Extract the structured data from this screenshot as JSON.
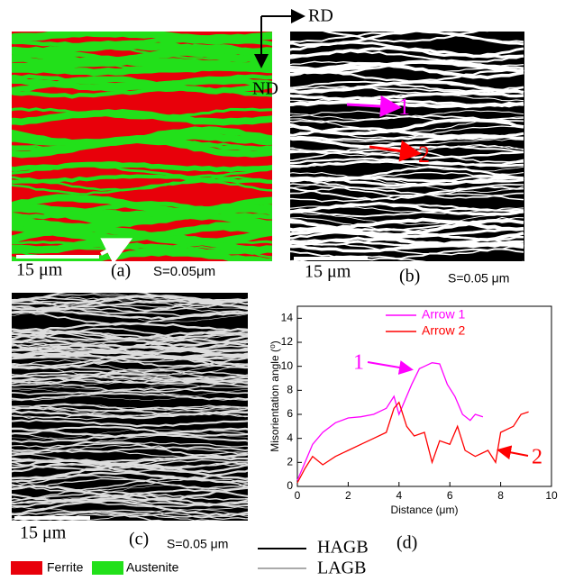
{
  "chart_data": {
    "type": "line",
    "x_label": "Distance (μm)",
    "y_label": "Misorientation angle (⁰)",
    "xlim": [
      0,
      10
    ],
    "xticks": [
      0,
      2,
      4,
      6,
      8,
      10
    ],
    "ylim": [
      0,
      15
    ],
    "yticks": [
      0,
      2,
      4,
      6,
      8,
      10,
      12,
      14
    ],
    "series": [
      {
        "name": "Arrow 1",
        "color": "#ff00ff",
        "x": [
          0,
          0.3,
          0.6,
          1,
          1.5,
          2,
          2.5,
          3,
          3.5,
          3.8,
          4,
          4.2,
          4.5,
          4.8,
          5,
          5.3,
          5.6,
          5.9,
          6.2,
          6.5,
          6.8,
          7,
          7.3
        ],
        "values": [
          0.5,
          2,
          3.5,
          4.5,
          5.3,
          5.7,
          5.8,
          6,
          6.5,
          7.5,
          6,
          7,
          8.5,
          9.8,
          10,
          10.3,
          10.2,
          8.5,
          7.5,
          6,
          5.5,
          6,
          5.8
        ]
      },
      {
        "name": "Arrow 2",
        "color": "#ff0000",
        "x": [
          0,
          0.3,
          0.6,
          1,
          1.5,
          2,
          2.5,
          3,
          3.5,
          3.8,
          4,
          4.3,
          4.6,
          5,
          5.3,
          5.6,
          6,
          6.3,
          6.6,
          7,
          7.5,
          7.8,
          8,
          8.5,
          8.8,
          9.1
        ],
        "values": [
          0.3,
          1.5,
          2.5,
          1.8,
          2.5,
          3,
          3.5,
          4,
          4.5,
          6.5,
          7,
          5,
          4.2,
          4.5,
          2,
          3.8,
          3.5,
          5,
          3,
          2.5,
          3,
          2,
          4.5,
          5,
          6,
          6.2
        ]
      }
    ],
    "annotations": [
      "1",
      "2"
    ]
  },
  "directions": {
    "rd": "RD",
    "nd": "ND"
  },
  "panels": [
    {
      "label": "(a)",
      "scale": "15 μm",
      "step": "S=0.05μm"
    },
    {
      "label": "(b)",
      "scale": "15 μm",
      "step": "S=0.05 μm",
      "arrows": [
        "1",
        "2"
      ]
    },
    {
      "label": "(c)",
      "scale": "15 μm",
      "step": "S=0.05 μm"
    },
    {
      "label": "(d)"
    }
  ],
  "phase_legend": [
    "Ferrite",
    "Austenite"
  ],
  "boundary_legend": [
    "HAGB",
    "LAGB"
  ]
}
